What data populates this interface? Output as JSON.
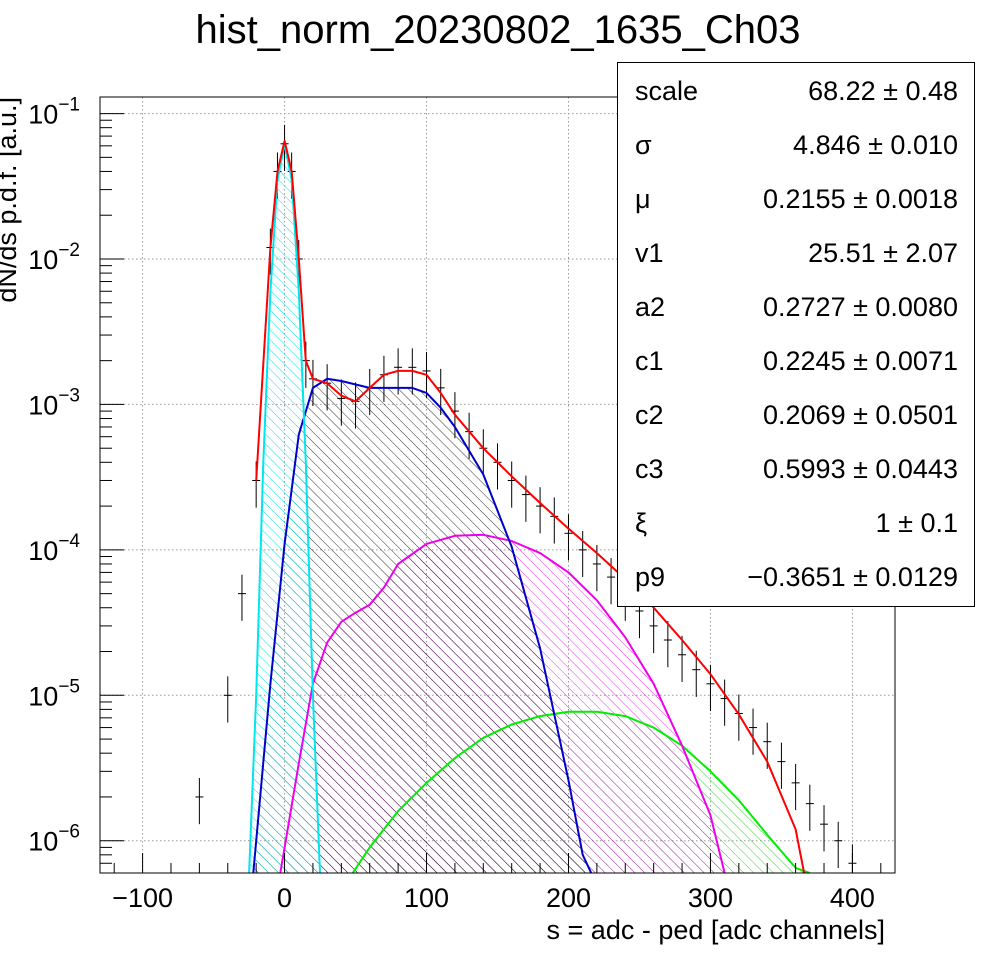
{
  "title": "hist_norm_20230802_1635_Ch03",
  "chart_data": {
    "type": "histogram",
    "xlabel": "s = adc - ped [adc channels]",
    "ylabel": "dN/ds p.d.f. [a.u.]",
    "xlim": [
      -130,
      430
    ],
    "ylim": [
      6e-07,
      0.13
    ],
    "yscale": "log",
    "grid": true,
    "xticks": [
      "−100",
      "0",
      "100",
      "200",
      "300",
      "400"
    ],
    "xtick_values": [
      -100,
      0,
      100,
      200,
      300,
      400
    ],
    "yticks": [
      {
        "base": "10",
        "exp": "−1",
        "value": 0.1
      },
      {
        "base": "10",
        "exp": "−2",
        "value": 0.01
      },
      {
        "base": "10",
        "exp": "−3",
        "value": 0.001
      },
      {
        "base": "10",
        "exp": "−4",
        "value": 0.0001
      },
      {
        "base": "10",
        "exp": "−5",
        "value": 1e-05
      },
      {
        "base": "10",
        "exp": "−6",
        "value": 1e-06
      }
    ],
    "series": [
      {
        "role": "data",
        "color": "#000000",
        "x": [
          -60,
          -40,
          -30,
          -20,
          -10,
          -5,
          0,
          5,
          10,
          15,
          20,
          30,
          40,
          50,
          60,
          70,
          80,
          90,
          100,
          110,
          120,
          130,
          140,
          150,
          160,
          170,
          180,
          190,
          200,
          210,
          220,
          230,
          240,
          250,
          260,
          270,
          280,
          290,
          300,
          310,
          320,
          330,
          340,
          350,
          360,
          370,
          380,
          390,
          400
        ],
        "y": [
          2e-06,
          1e-05,
          5e-05,
          0.0003,
          0.012,
          0.04,
          0.062,
          0.04,
          0.01,
          0.002,
          0.0015,
          0.0014,
          0.0011,
          0.00105,
          0.0013,
          0.0016,
          0.0018,
          0.0018,
          0.0017,
          0.0013,
          0.0009,
          0.00065,
          0.0005,
          0.0004,
          0.0003,
          0.00024,
          0.0002,
          0.00017,
          0.00013,
          0.0001,
          8e-05,
          6.5e-05,
          5e-05,
          3.8e-05,
          3e-05,
          2.4e-05,
          1.9e-05,
          1.5e-05,
          1.2e-05,
          9.5e-06,
          7.5e-06,
          6e-06,
          4.8e-06,
          3.5e-06,
          2.5e-06,
          1.8e-06,
          1.3e-06,
          1e-06,
          7e-07
        ]
      },
      {
        "role": "total fit",
        "color": "#ff0000",
        "x": [
          -20,
          -10,
          -5,
          0,
          5,
          10,
          15,
          20,
          30,
          40,
          50,
          60,
          70,
          80,
          90,
          100,
          110,
          120,
          140,
          160,
          180,
          200,
          220,
          240,
          260,
          280,
          300,
          320,
          340,
          360,
          366
        ],
        "y": [
          0.0003,
          0.012,
          0.04,
          0.065,
          0.04,
          0.01,
          0.002,
          0.0015,
          0.0014,
          0.00115,
          0.00105,
          0.0013,
          0.0016,
          0.0017,
          0.0017,
          0.0016,
          0.0012,
          0.00085,
          0.0005,
          0.00032,
          0.00021,
          0.00014,
          9.5e-05,
          6.3e-05,
          4e-05,
          2.4e-05,
          1.4e-05,
          7.4e-06,
          3.5e-06,
          1.2e-06,
          6e-07
        ]
      },
      {
        "role": "pedestal",
        "color": "#00e5ee",
        "x": [
          -25,
          -20,
          -15,
          -10,
          -5,
          0,
          5,
          10,
          15,
          20,
          25
        ],
        "y": [
          6e-07,
          1e-05,
          0.0004,
          0.006,
          0.035,
          0.062,
          0.035,
          0.006,
          0.0004,
          1e-05,
          6e-07
        ]
      },
      {
        "role": "1 p.e.",
        "color": "#0000cc",
        "x": [
          -22,
          -10,
          0,
          10,
          20,
          30,
          40,
          60,
          80,
          90,
          100,
          110,
          120,
          140,
          160,
          180,
          200,
          210,
          216
        ],
        "y": [
          6e-07,
          1.2e-05,
          0.00011,
          0.00062,
          0.0013,
          0.0015,
          0.00145,
          0.0013,
          0.0013,
          0.0013,
          0.0012,
          0.00095,
          0.0007,
          0.00033,
          0.000105,
          2.1e-05,
          2.6e-06,
          8e-07,
          6e-07
        ]
      },
      {
        "role": "2 p.e.",
        "color": "#ee00ee",
        "x": [
          -3,
          10,
          20,
          30,
          40,
          50,
          60,
          70,
          80,
          100,
          120,
          140,
          160,
          180,
          200,
          220,
          240,
          260,
          280,
          300,
          310
        ],
        "y": [
          6e-07,
          3.4e-06,
          1.2e-05,
          2.3e-05,
          3.2e-05,
          3.7e-05,
          4.2e-05,
          5.5e-05,
          8e-05,
          0.00011,
          0.000125,
          0.000127,
          0.000115,
          9.5e-05,
          7e-05,
          4.5e-05,
          2.5e-05,
          1.2e-05,
          4.5e-06,
          1.5e-06,
          6e-07
        ]
      },
      {
        "role": "3 p.e.",
        "color": "#00ee00",
        "x": [
          48,
          60,
          80,
          100,
          120,
          140,
          160,
          180,
          200,
          220,
          240,
          260,
          280,
          300,
          320,
          340,
          360,
          370
        ],
        "y": [
          6e-07,
          9e-07,
          1.6e-06,
          2.5e-06,
          3.7e-06,
          5.1e-06,
          6.3e-06,
          7.2e-06,
          7.7e-06,
          7.7e-06,
          7.2e-06,
          6e-06,
          4.5e-06,
          3e-06,
          1.9e-06,
          1.1e-06,
          6.5e-07,
          6e-07
        ]
      }
    ]
  },
  "stats": [
    {
      "name": "scale",
      "value": "68.22 ± 0.48"
    },
    {
      "name": "σ",
      "value": "4.846 ± 0.010"
    },
    {
      "name": "μ",
      "value": "0.2155 ± 0.0018"
    },
    {
      "name": "v1",
      "value": "25.51 ± 2.07"
    },
    {
      "name": "a2",
      "value": "0.2727 ± 0.0080"
    },
    {
      "name": "c1",
      "value": "0.2245 ± 0.0071"
    },
    {
      "name": "c2",
      "value": "0.2069 ± 0.0501"
    },
    {
      "name": "c3",
      "value": "0.5993 ± 0.0443"
    },
    {
      "name": "ξ",
      "value": "1 ± 0.1"
    },
    {
      "name": "p9",
      "value": "−0.3651 ± 0.0129"
    }
  ]
}
